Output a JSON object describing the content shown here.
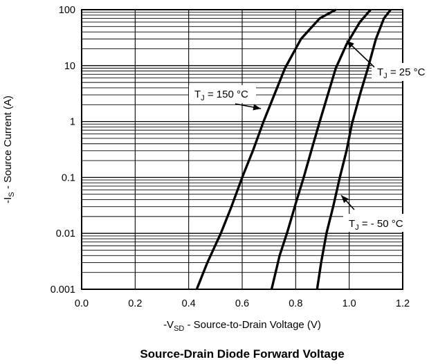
{
  "chart_data": {
    "type": "line",
    "title": "Source-Drain Diode Forward Voltage",
    "xlabel": {
      "prefix": "-V",
      "sub": "SD",
      "suffix": " - Source-to-Drain Voltage (V)"
    },
    "ylabel": {
      "prefix": "-I",
      "sub": "S",
      "suffix": " - Source Current (A)"
    },
    "xlim": [
      0.0,
      1.2
    ],
    "ylim": [
      0.001,
      100
    ],
    "yscale": "log",
    "grid": true,
    "x_ticks": [
      "0.0",
      "0.2",
      "0.4",
      "0.6",
      "0.8",
      "1.0",
      "1.2"
    ],
    "y_ticks": [
      "0.001",
      "0.01",
      "0.1",
      "1",
      "10",
      "100"
    ],
    "series": [
      {
        "name": "T_J = 150 °C",
        "x": [
          0.43,
          0.47,
          0.52,
          0.56,
          0.6,
          0.64,
          0.68,
          0.72,
          0.76,
          0.82,
          0.89,
          0.95
        ],
        "y": [
          0.001,
          0.003,
          0.01,
          0.03,
          0.1,
          0.3,
          1,
          3,
          9,
          30,
          70,
          100
        ]
      },
      {
        "name": "T_J = 25 °C",
        "x": [
          0.71,
          0.74,
          0.77,
          0.8,
          0.83,
          0.86,
          0.89,
          0.92,
          0.95,
          0.99,
          1.04,
          1.08
        ],
        "y": [
          0.001,
          0.004,
          0.011,
          0.034,
          0.1,
          0.32,
          1,
          3,
          9,
          24,
          60,
          100
        ]
      },
      {
        "name": "T_J = - 50 °C",
        "x": [
          0.88,
          0.895,
          0.915,
          0.94,
          0.965,
          0.99,
          1.01,
          1.04,
          1.07,
          1.1,
          1.13,
          1.155
        ],
        "y": [
          0.001,
          0.003,
          0.01,
          0.03,
          0.1,
          0.3,
          0.9,
          3,
          9,
          30,
          70,
          100
        ]
      }
    ],
    "annotations": [
      {
        "label": {
          "prefix": "T",
          "sub": "J",
          "suffix": " = 150 °C"
        },
        "target": [
          0.67,
          1.7
        ]
      },
      {
        "label": {
          "prefix": "T",
          "sub": "J",
          "suffix": " = 25 °C"
        },
        "target": [
          0.99,
          28
        ]
      },
      {
        "label": {
          "prefix": "T",
          "sub": "J",
          "suffix": " = - 50 °C"
        },
        "target": [
          0.97,
          0.048
        ]
      }
    ]
  }
}
